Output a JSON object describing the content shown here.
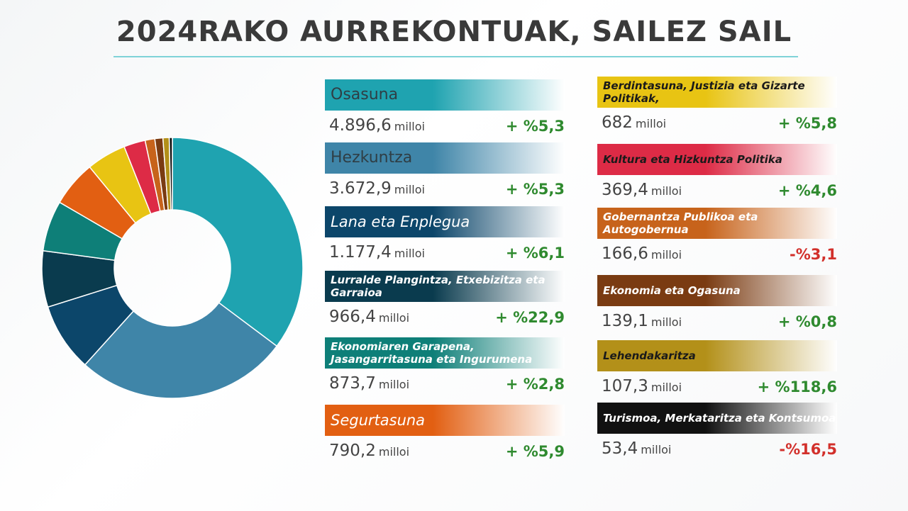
{
  "title": "2024RAKO AURREKONTUAK, SAILEZ SAIL",
  "unit_label": "milloi",
  "chart_data": {
    "type": "pie",
    "donut": true,
    "categories": [
      "Osasuna",
      "Hezkuntza",
      "Lana eta Enplegua",
      "Lurralde Plangintza, Etxebizitza eta Garraioa",
      "Ekonomiaren Garapena, Jasangarritasuna eta Ingurumena",
      "Segurtasuna",
      "Berdintasuna, Justizia eta Gizarte Politikak,",
      "Kultura eta Hizkuntza Politika",
      "Gobernantza Publikoa eta Autogobernua",
      "Ekonomia eta Ogasuna",
      "Lehendakaritza",
      "Turismoa, Merkataritza eta Kontsumoa"
    ],
    "values": [
      4896.6,
      3672.9,
      1177.4,
      966.4,
      873.7,
      790.2,
      682,
      369.4,
      166.6,
      139.1,
      107.3,
      53.4
    ],
    "colors": [
      "#1fa3b0",
      "#3f85a8",
      "#0c466a",
      "#0a3b4e",
      "#0e7f78",
      "#e25f12",
      "#e8c413",
      "#dd2b46",
      "#c7631b",
      "#7a3b12",
      "#b39019",
      "#111111"
    ]
  },
  "departments": [
    {
      "name": "Osasuna",
      "amount": "4.896,6",
      "change": "+ %5,3",
      "dir": "pos",
      "color": "#1fa3b0",
      "text": "#2f3e45",
      "style": "big"
    },
    {
      "name": "Hezkuntza",
      "amount": "3.672,9",
      "change": "+ %5,3",
      "dir": "pos",
      "color": "#3f85a8",
      "text": "#2f3e45",
      "style": "big"
    },
    {
      "name": "Lana eta Enplegua",
      "amount": "1.177,4",
      "change": "+ %6,1",
      "dir": "pos",
      "color": "#0c466a",
      "text": "#ffffff",
      "style": "med"
    },
    {
      "name": "Lurralde Plangintza, Etxebizitza eta Garraioa",
      "amount": "966,4",
      "change": "+ %22,9",
      "dir": "pos",
      "color": "#0a3b4e",
      "text": "#ffffff",
      "style": "small"
    },
    {
      "name": "Ekonomiaren Garapena, Jasangarritasuna eta Ingurumena",
      "amount": "873,7",
      "change": "+ %2,8",
      "dir": "pos",
      "color": "#0e7f78",
      "text": "#ffffff",
      "style": "small"
    },
    {
      "name": "Segurtasuna",
      "amount": "790,2",
      "change": "+ %5,9",
      "dir": "pos",
      "color": "#e25f12",
      "text": "#ffffff",
      "style": "med"
    },
    {
      "name": "Berdintasuna, Justizia eta Gizarte Politikak,",
      "amount": "682",
      "change": "+ %5,8",
      "dir": "pos",
      "color": "#e8c413",
      "text": "#1a1a1a",
      "style": "small"
    },
    {
      "name": "Kultura eta Hizkuntza Politika",
      "amount": "369,4",
      "change": "+ %4,6",
      "dir": "pos",
      "color": "#dd2b46",
      "text": "#1a1a1a",
      "style": "small"
    },
    {
      "name": "Gobernantza Publikoa eta Autogobernua",
      "amount": "166,6",
      "change": "-%3,1",
      "dir": "neg",
      "color": "#c7631b",
      "text": "#ffffff",
      "style": "small"
    },
    {
      "name": "Ekonomia eta Ogasuna",
      "amount": "139,1",
      "change": "+ %0,8",
      "dir": "pos",
      "color": "#7a3b12",
      "text": "#ffffff",
      "style": "small"
    },
    {
      "name": "Lehendakaritza",
      "amount": "107,3",
      "change": "+ %118,6",
      "dir": "pos",
      "color": "#b39019",
      "text": "#1a1a1a",
      "style": "small"
    },
    {
      "name": "Turismoa, Merkataritza eta Kontsumoa",
      "amount": "53,4",
      "change": "-%16,5",
      "dir": "neg",
      "color": "#111111",
      "text": "#ffffff",
      "style": "small"
    }
  ]
}
